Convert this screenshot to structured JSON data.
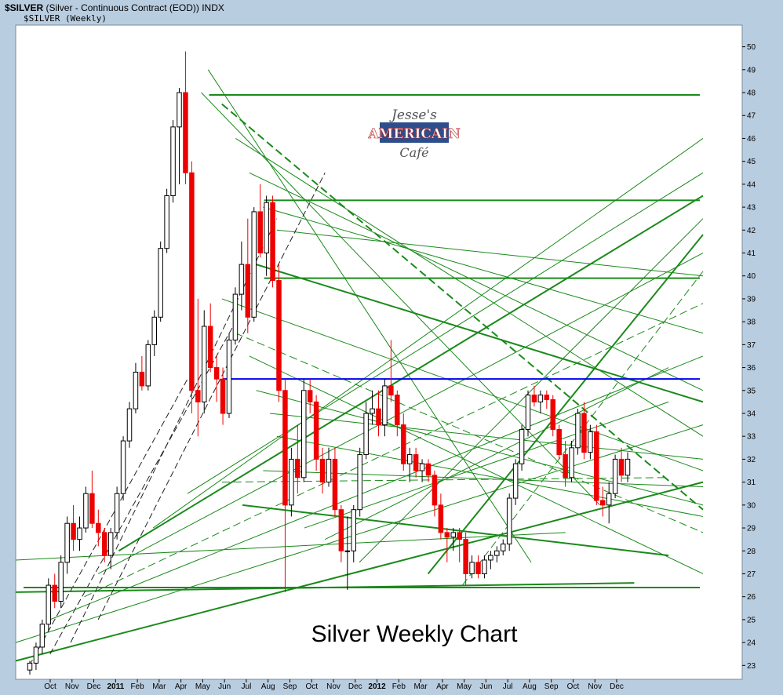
{
  "header": {
    "symbol": "$SILVER",
    "description": "(Silver - Continuous Contract (EOD)) INDX",
    "subtitle": "$SILVER (Weekly)"
  },
  "watermark": {
    "line1": "Jesse's",
    "line2": "AMERICAIN",
    "line3": "Café"
  },
  "colors": {
    "up_candle": "#ffffff",
    "down_candle": "#ee0000",
    "trendline": "#1a8a1a",
    "support": "#0000ee",
    "plot_bg": "#ffffff"
  },
  "chart_data": {
    "type": "candlestick",
    "title": "Silver Weekly Chart",
    "ylim": [
      22.6,
      50.5
    ],
    "y_ticks": [
      23,
      24,
      25,
      26,
      27,
      28,
      29,
      30,
      31,
      32,
      33,
      34,
      35,
      36,
      37,
      38,
      39,
      40,
      41,
      42,
      43,
      44,
      45,
      46,
      47,
      48,
      49,
      50
    ],
    "x_ticks": [
      "Oct",
      "Nov",
      "Dec",
      "2011",
      "Feb",
      "Mar",
      "Apr",
      "May",
      "Jun",
      "Jul",
      "Aug",
      "Sep",
      "Oct",
      "Nov",
      "Dec",
      "2012",
      "Feb",
      "Mar",
      "Apr",
      "May",
      "Jun",
      "Jul",
      "Aug",
      "Sep",
      "Oct",
      "Nov",
      "Dec"
    ],
    "candles": [
      [
        22.8,
        23.2,
        22.6,
        23.1
      ],
      [
        23.1,
        24.0,
        22.8,
        23.8
      ],
      [
        23.8,
        25.0,
        23.5,
        24.8
      ],
      [
        24.8,
        26.8,
        24.5,
        26.5
      ],
      [
        26.5,
        27.0,
        25.5,
        25.8
      ],
      [
        25.8,
        27.8,
        25.5,
        27.5
      ],
      [
        27.5,
        29.5,
        27.0,
        29.2
      ],
      [
        29.2,
        30.0,
        28.0,
        28.5
      ],
      [
        28.5,
        29.5,
        28.0,
        29.0
      ],
      [
        29.0,
        30.8,
        28.8,
        30.5
      ],
      [
        30.5,
        31.5,
        29.0,
        29.2
      ],
      [
        29.2,
        29.8,
        28.2,
        28.8
      ],
      [
        28.8,
        29.0,
        27.5,
        27.8
      ],
      [
        27.8,
        29.0,
        27.2,
        28.8
      ],
      [
        28.8,
        30.8,
        28.5,
        30.5
      ],
      [
        30.5,
        33.0,
        30.2,
        32.8
      ],
      [
        32.8,
        34.5,
        32.5,
        34.2
      ],
      [
        34.2,
        36.2,
        34.0,
        35.8
      ],
      [
        35.8,
        36.5,
        35.0,
        35.2
      ],
      [
        35.2,
        37.2,
        35.0,
        37.0
      ],
      [
        37.0,
        38.5,
        36.5,
        38.2
      ],
      [
        38.2,
        41.5,
        38.0,
        41.2
      ],
      [
        41.2,
        43.8,
        41.0,
        43.5
      ],
      [
        43.5,
        46.8,
        43.2,
        46.5
      ],
      [
        46.5,
        48.2,
        44.0,
        48.0
      ],
      [
        48.0,
        49.8,
        44.0,
        44.5
      ],
      [
        44.5,
        45.0,
        34.0,
        35.0
      ],
      [
        35.0,
        39.0,
        33.0,
        34.5
      ],
      [
        34.5,
        38.5,
        34.0,
        37.8
      ],
      [
        37.8,
        38.8,
        35.8,
        36.0
      ],
      [
        36.0,
        36.5,
        34.5,
        35.5
      ],
      [
        35.5,
        36.0,
        33.5,
        34.0
      ],
      [
        34.0,
        37.5,
        33.8,
        37.2
      ],
      [
        37.2,
        39.5,
        37.0,
        39.2
      ],
      [
        39.2,
        41.5,
        38.5,
        40.5
      ],
      [
        40.5,
        42.5,
        37.5,
        38.2
      ],
      [
        38.2,
        43.0,
        38.0,
        42.8
      ],
      [
        42.8,
        44.0,
        40.8,
        41.0
      ],
      [
        41.0,
        43.5,
        40.0,
        43.2
      ],
      [
        43.2,
        43.5,
        39.5,
        39.8
      ],
      [
        39.8,
        40.5,
        34.5,
        35.0
      ],
      [
        35.0,
        35.5,
        26.2,
        30.0
      ],
      [
        30.0,
        32.5,
        29.5,
        32.0
      ],
      [
        32.0,
        33.5,
        30.5,
        31.2
      ],
      [
        31.2,
        35.5,
        31.0,
        35.0
      ],
      [
        35.0,
        35.5,
        34.0,
        34.5
      ],
      [
        34.5,
        34.8,
        31.5,
        32.0
      ],
      [
        32.0,
        32.5,
        30.5,
        31.0
      ],
      [
        31.0,
        32.5,
        30.8,
        32.0
      ],
      [
        32.0,
        32.5,
        29.5,
        29.8
      ],
      [
        29.8,
        30.0,
        27.5,
        28.0
      ],
      [
        28.0,
        29.5,
        26.3,
        28.0
      ],
      [
        28.0,
        30.0,
        27.5,
        29.8
      ],
      [
        29.8,
        32.5,
        29.5,
        32.2
      ],
      [
        32.2,
        34.5,
        32.0,
        34.0
      ],
      [
        34.0,
        35.0,
        33.5,
        34.2
      ],
      [
        34.2,
        35.0,
        33.0,
        33.5
      ],
      [
        33.5,
        35.5,
        33.0,
        35.2
      ],
      [
        35.2,
        37.2,
        34.5,
        34.8
      ],
      [
        34.8,
        35.0,
        33.0,
        33.5
      ],
      [
        33.5,
        34.0,
        31.5,
        31.8
      ],
      [
        31.8,
        32.5,
        31.0,
        32.2
      ],
      [
        32.2,
        32.5,
        31.2,
        31.5
      ],
      [
        31.5,
        32.0,
        31.0,
        31.8
      ],
      [
        31.8,
        32.0,
        31.0,
        31.3
      ],
      [
        31.3,
        31.5,
        29.5,
        30.0
      ],
      [
        30.0,
        30.5,
        28.5,
        28.8
      ],
      [
        28.8,
        29.0,
        27.5,
        28.6
      ],
      [
        28.6,
        29.0,
        28.0,
        28.8
      ],
      [
        28.8,
        29.0,
        27.5,
        28.5
      ],
      [
        28.5,
        28.8,
        26.5,
        27.0
      ],
      [
        27.0,
        27.8,
        26.8,
        27.5
      ],
      [
        27.5,
        27.8,
        26.8,
        27.0
      ],
      [
        27.0,
        27.8,
        26.8,
        27.6
      ],
      [
        27.6,
        28.0,
        27.2,
        27.8
      ],
      [
        27.8,
        28.2,
        27.5,
        28.0
      ],
      [
        28.0,
        28.5,
        27.8,
        28.3
      ],
      [
        28.3,
        30.5,
        28.0,
        30.3
      ],
      [
        30.3,
        32.0,
        30.0,
        31.8
      ],
      [
        31.8,
        33.5,
        31.5,
        33.3
      ],
      [
        33.3,
        35.0,
        33.0,
        34.8
      ],
      [
        34.8,
        35.2,
        34.3,
        34.5
      ],
      [
        34.5,
        35.0,
        34.0,
        34.8
      ],
      [
        34.8,
        35.0,
        34.2,
        34.6
      ],
      [
        34.6,
        34.8,
        33.0,
        33.3
      ],
      [
        33.3,
        33.5,
        32.0,
        32.2
      ],
      [
        32.2,
        32.8,
        30.8,
        31.2
      ],
      [
        31.2,
        32.8,
        31.0,
        32.5
      ],
      [
        32.5,
        34.2,
        32.2,
        34.0
      ],
      [
        34.0,
        34.5,
        32.0,
        32.3
      ],
      [
        32.3,
        33.5,
        32.0,
        33.2
      ],
      [
        33.2,
        33.5,
        30.0,
        30.2
      ],
      [
        30.2,
        30.8,
        29.5,
        30.0
      ],
      [
        30.0,
        31.0,
        29.2,
        30.5
      ],
      [
        30.5,
        32.2,
        30.3,
        32.0
      ],
      [
        32.0,
        32.5,
        31.0,
        31.3
      ],
      [
        31.3,
        32.3,
        31.0,
        32.0
      ]
    ],
    "horizontal_levels": [
      {
        "value": 47.9,
        "color": "green",
        "from": 0.27
      },
      {
        "value": 43.3,
        "color": "green",
        "from": 0.35
      },
      {
        "value": 39.9,
        "color": "green",
        "from": 0.35
      },
      {
        "value": 35.5,
        "color": "blue",
        "from": 0.29
      },
      {
        "value": 26.4,
        "color": "green",
        "from": 0.0
      }
    ]
  }
}
